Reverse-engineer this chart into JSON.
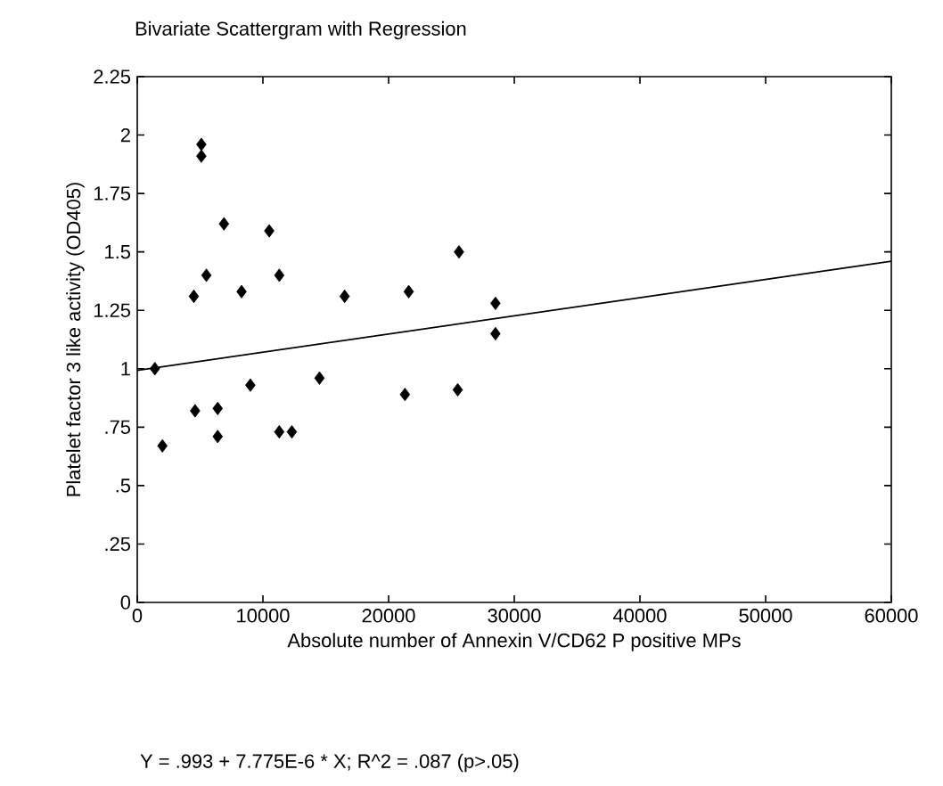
{
  "chart_data": {
    "type": "scatter",
    "title": "Bivariate Scattergram with Regression",
    "xlabel": "Absolute number of Annexin V/CD62 P positive MPs",
    "ylabel": "Platelet factor 3 like activity (OD405)",
    "annotations": [
      "Y = .993 + 7.775E-6 * X; R^2 = .087 (p>.05)"
    ],
    "xlim": [
      0,
      60000
    ],
    "ylim": [
      0,
      2.25
    ],
    "xticks": [
      0,
      10000,
      20000,
      30000,
      40000,
      50000,
      60000
    ],
    "yticks": [
      0,
      {
        "value": 0.25,
        "label": ".25"
      },
      {
        "value": 0.5,
        "label": ".5"
      },
      {
        "value": 0.75,
        "label": ".75"
      },
      1,
      1.25,
      1.5,
      1.75,
      2,
      2.25
    ],
    "grid": false,
    "marker": "diamond",
    "series": [
      {
        "color": "#000000",
        "x": [
          1400,
          2000,
          4500,
          5500,
          8300,
          11300,
          16500,
          21600,
          25600,
          28500,
          28500,
          4600,
          6400,
          6400,
          9000,
          11300,
          12300,
          14500,
          21300,
          25500,
          5100,
          5100,
          6900,
          10500
        ],
        "values": [
          1.0,
          0.67,
          1.31,
          1.4,
          1.33,
          1.4,
          1.31,
          1.33,
          1.5,
          1.28,
          1.15,
          0.82,
          0.83,
          0.71,
          0.93,
          0.73,
          0.73,
          0.96,
          0.89,
          0.91,
          1.96,
          1.91,
          1.62,
          1.59
        ]
      },
      {
        "type": "line",
        "color": "#000000",
        "marker": "none",
        "line_style": "solid",
        "x": [
          0,
          60000
        ],
        "values": [
          0.993,
          1.46
        ]
      }
    ]
  }
}
